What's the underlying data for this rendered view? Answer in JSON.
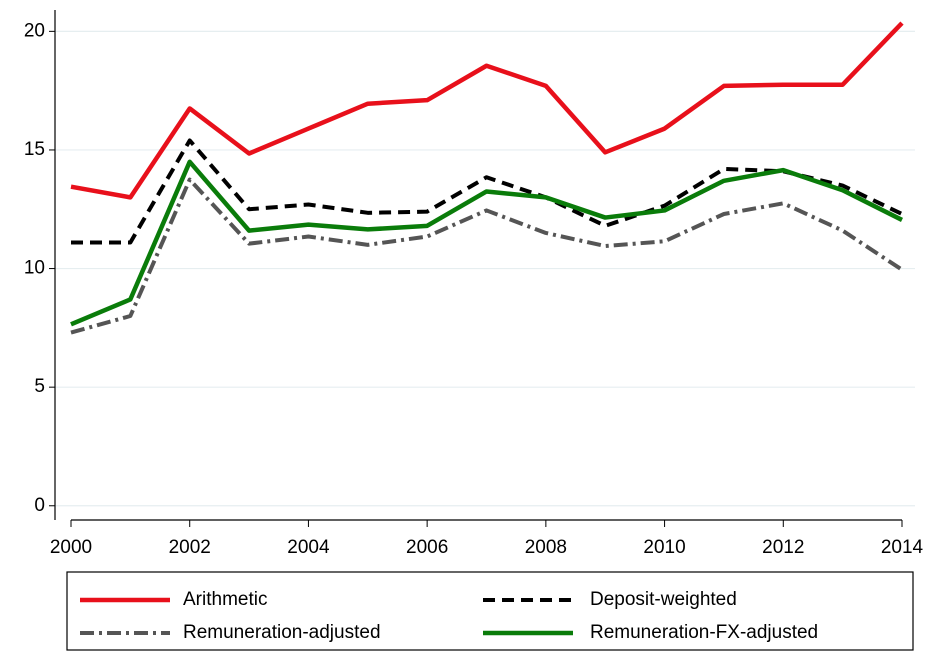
{
  "chart_data": {
    "type": "line",
    "x": [
      2000,
      2001,
      2002,
      2003,
      2004,
      2005,
      2006,
      2007,
      2008,
      2009,
      2010,
      2011,
      2012,
      2013,
      2014
    ],
    "xlim": [
      2000,
      2014
    ],
    "xticks": [
      2000,
      2002,
      2004,
      2006,
      2008,
      2010,
      2012,
      2014
    ],
    "ylim": [
      -0.6,
      20.9
    ],
    "yticks": [
      0,
      5,
      10,
      15,
      20
    ],
    "grid": true,
    "legend": "bottom",
    "series": [
      {
        "name": "Arithmetic",
        "color": "#e8101b",
        "dash": "solid",
        "values": [
          13.45,
          13.0,
          16.75,
          14.85,
          15.9,
          16.95,
          17.1,
          18.55,
          17.7,
          14.9,
          15.9,
          17.7,
          17.75,
          17.75,
          20.35
        ]
      },
      {
        "name": "Deposit-weighted",
        "color": "#000000",
        "dash": "dash",
        "values": [
          11.1,
          11.1,
          15.4,
          12.5,
          12.7,
          12.35,
          12.4,
          13.85,
          13.0,
          11.8,
          12.65,
          14.2,
          14.1,
          13.5,
          12.3
        ]
      },
      {
        "name": "Remuneration-adjusted",
        "color": "#555555",
        "dash": "dashdot",
        "values": [
          7.3,
          8.0,
          13.75,
          11.05,
          11.35,
          11.0,
          11.35,
          12.45,
          11.5,
          10.95,
          11.15,
          12.3,
          12.75,
          11.6,
          9.95
        ]
      },
      {
        "name": "Remuneration-FX-adjusted",
        "color": "#0a7c0a",
        "dash": "solid",
        "values": [
          7.65,
          8.7,
          14.5,
          11.6,
          11.85,
          11.65,
          11.8,
          13.25,
          13.0,
          12.15,
          12.45,
          13.7,
          14.15,
          13.3,
          12.05
        ]
      }
    ]
  }
}
